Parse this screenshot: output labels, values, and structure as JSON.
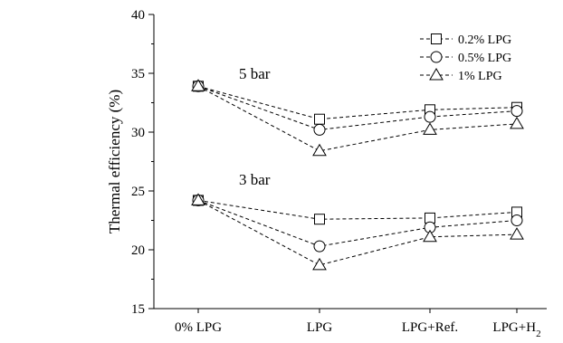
{
  "chart_data": {
    "type": "line",
    "categories": [
      "0% LPG",
      "LPG",
      "LPG+Ref.",
      "LPG+H"
    ],
    "category_subscript": [
      "",
      "",
      "",
      "2"
    ],
    "ylabel": "Thermal efficiency (%)",
    "xlabel": "",
    "ylim": [
      15,
      40
    ],
    "yticks": [
      15,
      20,
      25,
      30,
      35,
      40
    ],
    "grid": false,
    "legend_position": "top-right",
    "group_labels": [
      {
        "text": "5 bar",
        "y": 35
      },
      {
        "text": "3 bar",
        "y": 26
      }
    ],
    "series": [
      {
        "name": "0.2% LPG",
        "marker": "square",
        "group": "5 bar",
        "values": [
          33.9,
          31.1,
          31.9,
          32.1
        ]
      },
      {
        "name": "0.5% LPG",
        "marker": "circle",
        "group": "5 bar",
        "values": [
          33.9,
          30.2,
          31.3,
          31.8
        ]
      },
      {
        "name": "1% LPG",
        "marker": "triangle",
        "group": "5 bar",
        "values": [
          33.9,
          28.4,
          30.2,
          30.7
        ]
      },
      {
        "name": "0.2% LPG",
        "marker": "square",
        "group": "3 bar",
        "values": [
          24.2,
          22.6,
          22.7,
          23.2
        ]
      },
      {
        "name": "0.5% LPG",
        "marker": "circle",
        "group": "3 bar",
        "values": [
          24.2,
          20.3,
          21.9,
          22.5
        ]
      },
      {
        "name": "1% LPG",
        "marker": "triangle",
        "group": "3 bar",
        "values": [
          24.2,
          18.7,
          21.1,
          21.3
        ]
      }
    ],
    "legend": [
      {
        "name": "0.2% LPG",
        "marker": "square"
      },
      {
        "name": "0.5% LPG",
        "marker": "circle"
      },
      {
        "name": "1% LPG",
        "marker": "triangle"
      }
    ]
  }
}
